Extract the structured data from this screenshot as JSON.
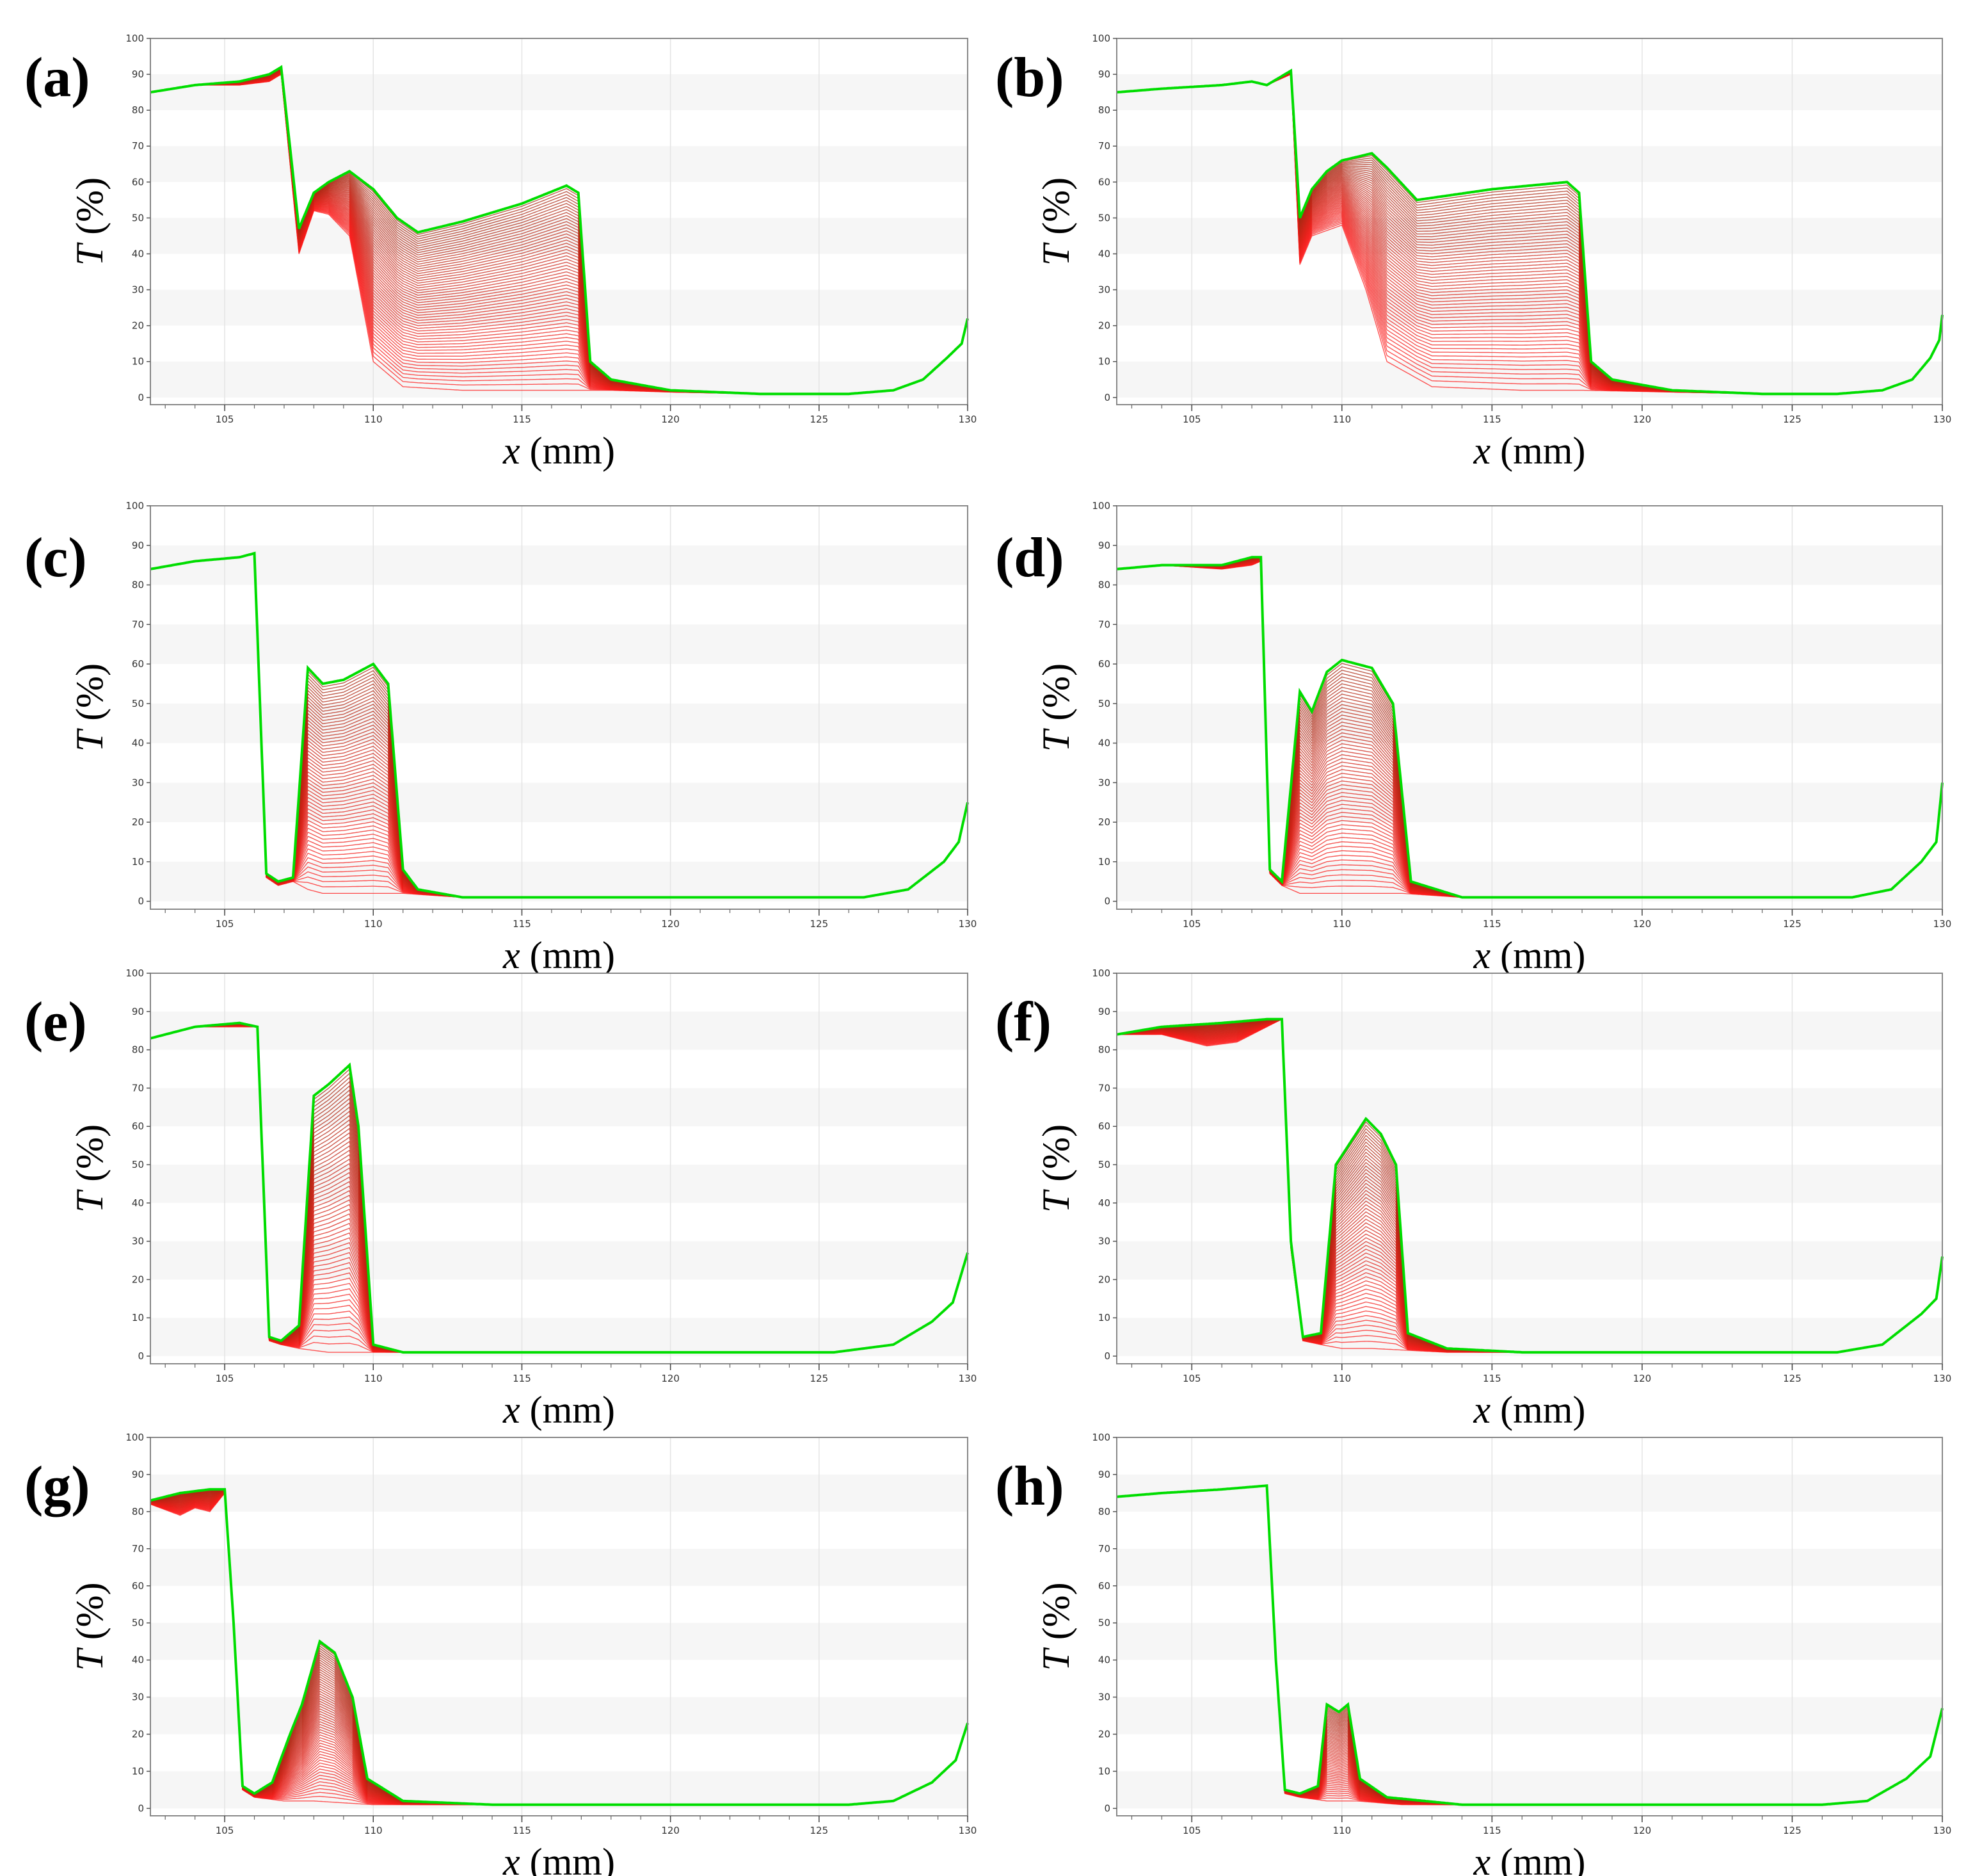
{
  "figure": {
    "panels": [
      "(a)",
      "(b)",
      "(c)",
      "(d)",
      "(e)",
      "(f)",
      "(g)",
      "(h)"
    ],
    "xlabel_var": "x",
    "xlabel_unit": "(mm)",
    "ylabel_var": "T",
    "ylabel_unit": "(%)"
  },
  "colors": {
    "early_curve": "#ff1a1a",
    "late_curve": "#00dd00",
    "band": "#f6f6f6",
    "grid": "#e4e4e4",
    "frame": "#888888"
  },
  "chart_data": [
    {
      "type": "line",
      "panel": "(a)",
      "xlabel": "x (mm)",
      "ylabel": "T (%)",
      "xlim": [
        102.5,
        130
      ],
      "ylim": [
        -2,
        100
      ],
      "xticks": [
        105,
        110,
        115,
        120,
        125,
        130
      ],
      "yticks": [
        0,
        10,
        20,
        30,
        40,
        50,
        60,
        70,
        80,
        90,
        100
      ],
      "series_count": 60,
      "series_description": "family of transmittance profiles, early (red) to late (green)",
      "final_profile": {
        "x": [
          102.5,
          104.0,
          105.5,
          106.5,
          106.9,
          107.5,
          108.0,
          108.5,
          109.2,
          110.0,
          110.8,
          111.5,
          113.0,
          115.0,
          116.5,
          116.9,
          117.3,
          118.0,
          120.0,
          123.0,
          126.0,
          127.5,
          128.5,
          129.3,
          129.8,
          130.0
        ],
        "y": [
          85,
          87,
          88,
          90,
          92,
          47,
          57,
          60,
          63,
          58,
          50,
          46,
          49,
          54,
          59,
          57,
          10,
          5,
          2,
          1,
          1,
          2,
          5,
          11,
          15,
          22
        ]
      },
      "initial_profile": {
        "x": [
          102.5,
          104.0,
          105.5,
          106.5,
          106.9,
          107.5,
          108.0,
          108.5,
          109.2,
          110.0,
          111.0,
          113.0,
          116.0,
          118.0,
          120.0,
          123.0,
          126.0,
          127.5,
          128.5,
          129.3,
          129.8,
          130.0
        ],
        "y": [
          85,
          87,
          87,
          88,
          90,
          40,
          52,
          51,
          45,
          10,
          3,
          2,
          2,
          2,
          1.5,
          1,
          1,
          2,
          5,
          11,
          15,
          22
        ]
      }
    },
    {
      "type": "line",
      "panel": "(b)",
      "xlabel": "x (mm)",
      "ylabel": "T (%)",
      "xlim": [
        102.5,
        130
      ],
      "ylim": [
        -2,
        100
      ],
      "xticks": [
        105,
        110,
        115,
        120,
        125,
        130
      ],
      "yticks": [
        0,
        10,
        20,
        30,
        40,
        50,
        60,
        70,
        80,
        90,
        100
      ],
      "series_count": 60,
      "series_description": "family of transmittance profiles, early (red) to late (green)",
      "final_profile": {
        "x": [
          102.5,
          104.0,
          106.0,
          107.0,
          107.5,
          108.3,
          108.6,
          109.0,
          109.5,
          110.0,
          111.0,
          111.5,
          112.5,
          115.0,
          117.5,
          117.9,
          118.3,
          119.0,
          121.0,
          124.0,
          126.5,
          128.0,
          129.0,
          129.6,
          129.9,
          130.0
        ],
        "y": [
          85,
          86,
          87,
          88,
          87,
          91,
          50,
          58,
          63,
          66,
          68,
          64,
          55,
          58,
          60,
          57,
          10,
          5,
          2,
          1,
          1,
          2,
          5,
          11,
          16,
          23
        ]
      },
      "initial_profile": {
        "x": [
          102.5,
          104.0,
          106.0,
          107.0,
          107.5,
          108.3,
          108.6,
          109.0,
          110.0,
          110.8,
          111.5,
          113.0,
          116.0,
          118.0,
          121.0,
          124.0,
          126.5,
          128.0,
          129.0,
          129.6,
          129.9,
          130.0
        ],
        "y": [
          85,
          86,
          87,
          88,
          87,
          90,
          37,
          45,
          48,
          30,
          10,
          3,
          2,
          2,
          1.5,
          1,
          1,
          2,
          5,
          11,
          16,
          23
        ]
      }
    },
    {
      "type": "line",
      "panel": "(c)",
      "xlabel": "x (mm)",
      "ylabel": "T (%)",
      "xlim": [
        102.5,
        130
      ],
      "ylim": [
        -2,
        100
      ],
      "xticks": [
        105,
        110,
        115,
        120,
        125,
        130
      ],
      "yticks": [
        0,
        10,
        20,
        30,
        40,
        50,
        60,
        70,
        80,
        90,
        100
      ],
      "series_count": 60,
      "series_description": "family of transmittance profiles, early (red) to late (green)",
      "final_profile": {
        "x": [
          102.5,
          104.0,
          105.5,
          106.0,
          106.4,
          106.8,
          107.3,
          107.8,
          108.3,
          109.0,
          110.0,
          110.5,
          111.0,
          111.5,
          113.0,
          116.0,
          120.0,
          124.0,
          126.5,
          128.0,
          129.2,
          129.7,
          130.0
        ],
        "y": [
          84,
          86,
          87,
          88,
          7,
          5,
          6,
          59,
          55,
          56,
          60,
          55,
          8,
          3,
          1,
          1,
          1,
          1,
          1,
          3,
          10,
          15,
          25
        ]
      },
      "initial_profile": {
        "x": [
          102.5,
          104.0,
          105.5,
          106.0,
          106.4,
          106.8,
          107.3,
          107.8,
          108.3,
          109.0,
          110.0,
          111.0,
          113.0,
          116.0,
          120.0,
          124.0,
          126.5,
          128.0,
          129.2,
          129.7,
          130.0
        ],
        "y": [
          84,
          86,
          87,
          88,
          6,
          4,
          5,
          3,
          2,
          2,
          2,
          2,
          1,
          1,
          1,
          1,
          1,
          3,
          10,
          15,
          25
        ]
      }
    },
    {
      "type": "line",
      "panel": "(d)",
      "xlabel": "x (mm)",
      "ylabel": "T (%)",
      "xlim": [
        102.5,
        130
      ],
      "ylim": [
        -2,
        100
      ],
      "xticks": [
        105,
        110,
        115,
        120,
        125,
        130
      ],
      "yticks": [
        0,
        10,
        20,
        30,
        40,
        50,
        60,
        70,
        80,
        90,
        100
      ],
      "series_count": 60,
      "series_description": "family of transmittance profiles, early (red) to late (green)",
      "final_profile": {
        "x": [
          102.5,
          104.0,
          106.0,
          107.0,
          107.3,
          107.6,
          108.0,
          108.6,
          109.0,
          109.5,
          110.0,
          111.0,
          111.7,
          112.3,
          114.0,
          117.0,
          121.0,
          125.0,
          127.0,
          128.3,
          129.3,
          129.8,
          130.0
        ],
        "y": [
          84,
          85,
          85,
          87,
          87,
          8,
          5,
          53,
          48,
          58,
          61,
          59,
          50,
          5,
          1,
          1,
          1,
          1,
          1,
          3,
          10,
          15,
          30
        ]
      },
      "initial_profile": {
        "x": [
          102.5,
          104.0,
          106.0,
          107.0,
          107.3,
          107.6,
          108.0,
          108.6,
          109.5,
          110.5,
          112.0,
          114.0,
          117.0,
          121.0,
          125.0,
          127.0,
          128.3,
          129.3,
          129.8,
          130.0
        ],
        "y": [
          84,
          85,
          84,
          85,
          86,
          7,
          4,
          2,
          2,
          2,
          2,
          1,
          1,
          1,
          1,
          1,
          3,
          10,
          15,
          30
        ]
      }
    },
    {
      "type": "line",
      "panel": "(e)",
      "xlabel": "x (mm)",
      "ylabel": "T (%)",
      "xlim": [
        102.5,
        130
      ],
      "ylim": [
        -2,
        100
      ],
      "xticks": [
        105,
        110,
        115,
        120,
        125,
        130
      ],
      "yticks": [
        0,
        10,
        20,
        30,
        40,
        50,
        60,
        70,
        80,
        90,
        100
      ],
      "series_count": 60,
      "series_description": "family of transmittance profiles, early (red) to late (green)",
      "final_profile": {
        "x": [
          102.5,
          104.0,
          105.5,
          106.1,
          106.5,
          106.9,
          107.5,
          108.0,
          108.5,
          109.2,
          109.5,
          110.0,
          111.0,
          114.0,
          118.0,
          122.0,
          125.5,
          127.5,
          128.8,
          129.5,
          130.0
        ],
        "y": [
          83,
          86,
          87,
          86,
          5,
          4,
          8,
          68,
          71,
          76,
          60,
          3,
          1,
          1,
          1,
          1,
          1,
          3,
          9,
          14,
          27
        ]
      },
      "initial_profile": {
        "x": [
          102.5,
          104.0,
          105.5,
          106.1,
          106.5,
          106.9,
          107.5,
          108.5,
          110.0,
          111.0,
          114.0,
          118.0,
          122.0,
          125.5,
          127.5,
          128.8,
          129.5,
          130.0
        ],
        "y": [
          83,
          86,
          86,
          86,
          4,
          3,
          2,
          1,
          1,
          1,
          1,
          1,
          1,
          1,
          3,
          9,
          14,
          27
        ]
      }
    },
    {
      "type": "line",
      "panel": "(f)",
      "xlabel": "x (mm)",
      "ylabel": "T (%)",
      "xlim": [
        102.5,
        130
      ],
      "ylim": [
        -2,
        100
      ],
      "xticks": [
        105,
        110,
        115,
        120,
        125,
        130
      ],
      "yticks": [
        0,
        10,
        20,
        30,
        40,
        50,
        60,
        70,
        80,
        90,
        100
      ],
      "series_count": 60,
      "series_description": "family of transmittance profiles, early (red) to late (green)",
      "final_profile": {
        "x": [
          102.5,
          104.0,
          106.0,
          107.5,
          108.0,
          108.3,
          108.7,
          109.3,
          109.8,
          110.3,
          110.8,
          111.3,
          111.8,
          112.2,
          113.5,
          116.0,
          120.0,
          124.0,
          126.5,
          128.0,
          129.3,
          129.8,
          130.0
        ],
        "y": [
          84,
          86,
          87,
          88,
          88,
          30,
          5,
          6,
          50,
          56,
          62,
          58,
          50,
          6,
          2,
          1,
          1,
          1,
          1,
          3,
          11,
          15,
          26
        ]
      },
      "initial_profile": {
        "x": [
          102.5,
          104.0,
          105.5,
          106.5,
          107.5,
          108.0,
          108.3,
          108.7,
          109.3,
          110.0,
          111.0,
          113.5,
          116.0,
          120.0,
          124.0,
          126.5,
          128.0,
          129.3,
          129.8,
          130.0
        ],
        "y": [
          84,
          84,
          81,
          82,
          86,
          88,
          28,
          4,
          3,
          2,
          2,
          1,
          1,
          1,
          1,
          1,
          3,
          11,
          15,
          26
        ]
      }
    },
    {
      "type": "line",
      "panel": "(g)",
      "xlabel": "x (mm)",
      "ylabel": "T (%)",
      "xlim": [
        102.5,
        130
      ],
      "ylim": [
        -2,
        100
      ],
      "xticks": [
        105,
        110,
        115,
        120,
        125,
        130
      ],
      "yticks": [
        0,
        10,
        20,
        30,
        40,
        50,
        60,
        70,
        80,
        90,
        100
      ],
      "series_count": 60,
      "series_description": "family of transmittance profiles, early (red) to late (green)",
      "final_profile": {
        "x": [
          102.5,
          103.5,
          104.5,
          105.0,
          105.3,
          105.6,
          106.0,
          106.6,
          107.2,
          107.6,
          108.2,
          108.7,
          109.3,
          109.8,
          111.0,
          114.0,
          118.0,
          122.0,
          126.0,
          127.5,
          128.8,
          129.6,
          130.0
        ],
        "y": [
          83,
          85,
          86,
          86,
          50,
          6,
          4,
          7,
          20,
          28,
          45,
          42,
          30,
          8,
          2,
          1,
          1,
          1,
          1,
          2,
          7,
          13,
          23
        ]
      },
      "initial_profile": {
        "x": [
          102.5,
          103.5,
          104.0,
          104.5,
          105.0,
          105.3,
          105.6,
          106.0,
          107.0,
          108.0,
          110.0,
          114.0,
          118.0,
          122.0,
          126.0,
          127.5,
          128.8,
          129.6,
          130.0
        ],
        "y": [
          82,
          79,
          81,
          80,
          85,
          48,
          5,
          3,
          2,
          2,
          1,
          1,
          1,
          1,
          1,
          2,
          7,
          13,
          23
        ]
      }
    },
    {
      "type": "line",
      "panel": "(h)",
      "xlabel": "x (mm)",
      "ylabel": "T (%)",
      "xlim": [
        102.5,
        130
      ],
      "ylim": [
        -2,
        100
      ],
      "xticks": [
        105,
        110,
        115,
        120,
        125,
        130
      ],
      "yticks": [
        0,
        10,
        20,
        30,
        40,
        50,
        60,
        70,
        80,
        90,
        100
      ],
      "series_count": 60,
      "series_description": "family of transmittance profiles, early (red) to late (green)",
      "final_profile": {
        "x": [
          102.5,
          104.0,
          106.0,
          107.5,
          107.8,
          108.1,
          108.6,
          109.2,
          109.5,
          109.9,
          110.2,
          110.6,
          111.5,
          114.0,
          118.0,
          122.0,
          126.0,
          127.5,
          128.8,
          129.6,
          130.0
        ],
        "y": [
          84,
          85,
          86,
          87,
          40,
          5,
          4,
          6,
          28,
          26,
          28,
          8,
          3,
          1,
          1,
          1,
          1,
          2,
          8,
          14,
          27
        ]
      },
      "initial_profile": {
        "x": [
          102.5,
          104.0,
          106.0,
          107.5,
          107.8,
          108.1,
          108.6,
          109.5,
          110.5,
          112.0,
          114.0,
          118.0,
          122.0,
          126.0,
          127.5,
          128.8,
          129.6,
          130.0
        ],
        "y": [
          84,
          85,
          86,
          87,
          40,
          4,
          3,
          2,
          2,
          1,
          1,
          1,
          1,
          1,
          2,
          8,
          14,
          27
        ]
      }
    }
  ]
}
